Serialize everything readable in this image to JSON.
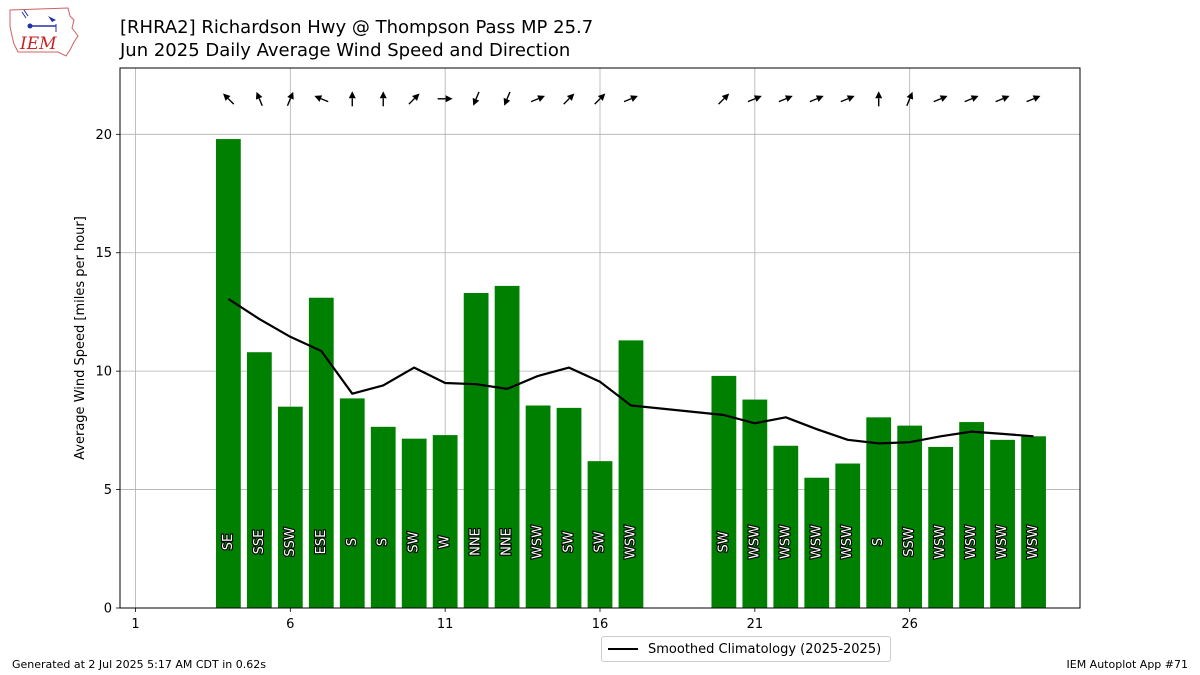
{
  "header": {
    "title_line1": "[RHRA2] Richardson Hwy @ Thompson Pass MP 25.7",
    "title_line2": "Jun 2025 Daily Average Wind Speed and Direction"
  },
  "logo": {
    "text": "IEM",
    "color": "#cc2222"
  },
  "footer": {
    "generated": "Generated at 2 Jul 2025 5:17 AM CDT in 0.62s",
    "app": "IEM Autoplot App #71"
  },
  "legend": {
    "label": "Smoothed Climatology (2025-2025)"
  },
  "colors": {
    "bar": "#008000",
    "line": "#000000",
    "grid": "#b0b0b0"
  },
  "chart_data": {
    "type": "bar",
    "ylabel": "Average Wind Speed [miles per hour]",
    "xlim": [
      0.5,
      31.5
    ],
    "ylim": [
      0,
      22.8
    ],
    "xticks": [
      1,
      6,
      11,
      16,
      21,
      26
    ],
    "yticks": [
      0,
      5,
      10,
      15,
      20
    ],
    "grid": true,
    "legend_position": "bottom-center",
    "days": [
      4,
      5,
      6,
      7,
      8,
      9,
      10,
      11,
      12,
      13,
      14,
      15,
      16,
      17,
      20,
      21,
      22,
      23,
      24,
      25,
      26,
      27,
      28,
      29,
      30
    ],
    "speeds": [
      19.8,
      10.8,
      8.5,
      13.1,
      8.85,
      7.65,
      7.15,
      7.3,
      13.3,
      13.6,
      8.55,
      8.45,
      6.2,
      11.3,
      9.8,
      8.8,
      6.85,
      5.5,
      6.1,
      8.05,
      7.7,
      6.8,
      7.85,
      7.1,
      7.25
    ],
    "directions": [
      "SE",
      "SSE",
      "SSW",
      "ESE",
      "S",
      "S",
      "SW",
      "W",
      "NNE",
      "NNE",
      "WSW",
      "SW",
      "SW",
      "WSW",
      "SW",
      "WSW",
      "WSW",
      "WSW",
      "WSW",
      "S",
      "SSW",
      "WSW",
      "WSW",
      "WSW",
      "WSW"
    ],
    "climatology": {
      "name": "Smoothed Climatology (2025-2025)",
      "days": [
        4,
        5,
        6,
        7,
        8,
        9,
        10,
        11,
        12,
        13,
        14,
        15,
        16,
        17,
        20,
        21,
        22,
        23,
        24,
        25,
        26,
        27,
        28,
        29,
        30
      ],
      "values": [
        13.05,
        12.2,
        11.45,
        10.85,
        9.05,
        9.4,
        10.15,
        9.5,
        9.45,
        9.25,
        9.8,
        10.15,
        9.55,
        8.55,
        8.15,
        7.8,
        8.05,
        7.55,
        7.1,
        6.95,
        7.0,
        7.25,
        7.45,
        7.35,
        7.25
      ]
    }
  }
}
